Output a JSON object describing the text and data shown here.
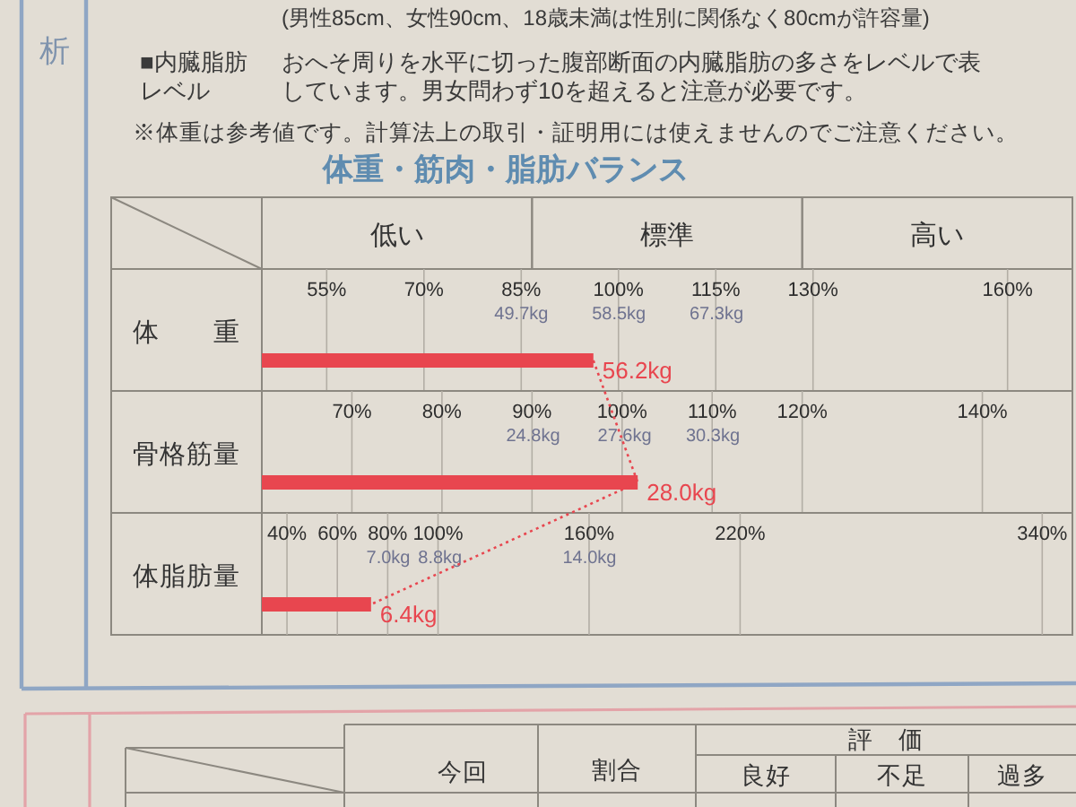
{
  "chart_data": [
    {
      "type": "other",
      "annotations": [
        "析",
        "(男性85cm、女性90cm、18歳未満は性別に関係なく80cmが許容量)",
        "■内臓脂肪レベル",
        "おへそ周りを水平に切った腹部断面の内臓脂肪の多さをレベルで表しています。男女問わず10を超えると注意が必要です。",
        "※体重は参考値です。計算法上の取引・証明用には使えませんのでご注意ください。"
      ]
    },
    {
      "type": "bar",
      "title": "体重・筋肉・脂肪バランス",
      "annotations": [
        "低い",
        "標準",
        "高い"
      ],
      "orientation": "horizontal",
      "categories": [
        "体　　重"
      ],
      "series": [
        {
          "color": "#e8464f",
          "axis": "x2",
          "values": [
            56.2
          ],
          "value_labels": [
            "56.2kg"
          ]
        }
      ],
      "xlim": [
        45,
        170
      ],
      "xticks": [
        {
          "value": 55,
          "label": "55%"
        },
        {
          "value": 70,
          "label": "70%"
        },
        {
          "value": 85,
          "label": "85%"
        },
        {
          "value": 100,
          "label": "100%"
        },
        {
          "value": 115,
          "label": "115%"
        },
        {
          "value": 130,
          "label": "130%"
        },
        {
          "value": 160,
          "label": "160%"
        }
      ],
      "x2lim": [
        26.3,
        99.4
      ],
      "x2ticks": [
        {
          "value": 49.7,
          "label": "49.7kg"
        },
        {
          "value": 58.5,
          "label": "58.5kg"
        },
        {
          "value": 67.3,
          "label": "67.3kg"
        }
      ],
      "grid": "x"
    },
    {
      "type": "bar",
      "orientation": "horizontal",
      "categories": [
        "骨格筋量"
      ],
      "series": [
        {
          "color": "#e8464f",
          "axis": "x2",
          "values": [
            28.0
          ],
          "value_labels": [
            "28.0kg"
          ]
        }
      ],
      "xlim": [
        60,
        150
      ],
      "xticks": [
        {
          "value": 70,
          "label": "70%"
        },
        {
          "value": 80,
          "label": "80%"
        },
        {
          "value": 90,
          "label": "90%"
        },
        {
          "value": 100,
          "label": "100%"
        },
        {
          "value": 110,
          "label": "110%"
        },
        {
          "value": 120,
          "label": "120%"
        },
        {
          "value": 140,
          "label": "140%"
        }
      ],
      "x2lim": [
        16.5,
        41.3
      ],
      "x2ticks": [
        {
          "value": 24.8,
          "label": "24.8kg"
        },
        {
          "value": 27.6,
          "label": "27.6kg"
        },
        {
          "value": 30.3,
          "label": "30.3kg"
        }
      ],
      "grid": "x"
    },
    {
      "type": "bar",
      "orientation": "horizontal",
      "categories": [
        "体脂肪量"
      ],
      "series": [
        {
          "color": "#e8464f",
          "axis": "x2",
          "values": [
            6.4
          ],
          "value_labels": [
            "6.4kg"
          ]
        }
      ],
      "xlim": [
        30,
        352
      ],
      "xticks": [
        {
          "value": 40,
          "label": "40%"
        },
        {
          "value": 60,
          "label": "60%"
        },
        {
          "value": 80,
          "label": "80%"
        },
        {
          "value": 100,
          "label": "100%"
        },
        {
          "value": 160,
          "label": "160%"
        },
        {
          "value": 220,
          "label": "220%"
        },
        {
          "value": 340,
          "label": "340%"
        }
      ],
      "x2lim": [
        2.6,
        30.8
      ],
      "x2ticks": [
        {
          "value": 7.0,
          "label": "7.0kg"
        },
        {
          "value": 8.8,
          "label": "8.8kg"
        },
        {
          "value": 14.0,
          "label": "14.0kg"
        }
      ],
      "grid": "x"
    },
    {
      "type": "other",
      "annotations": [
        "今回",
        "割合",
        "評　価",
        "良好",
        "不足",
        "過多"
      ]
    }
  ]
}
